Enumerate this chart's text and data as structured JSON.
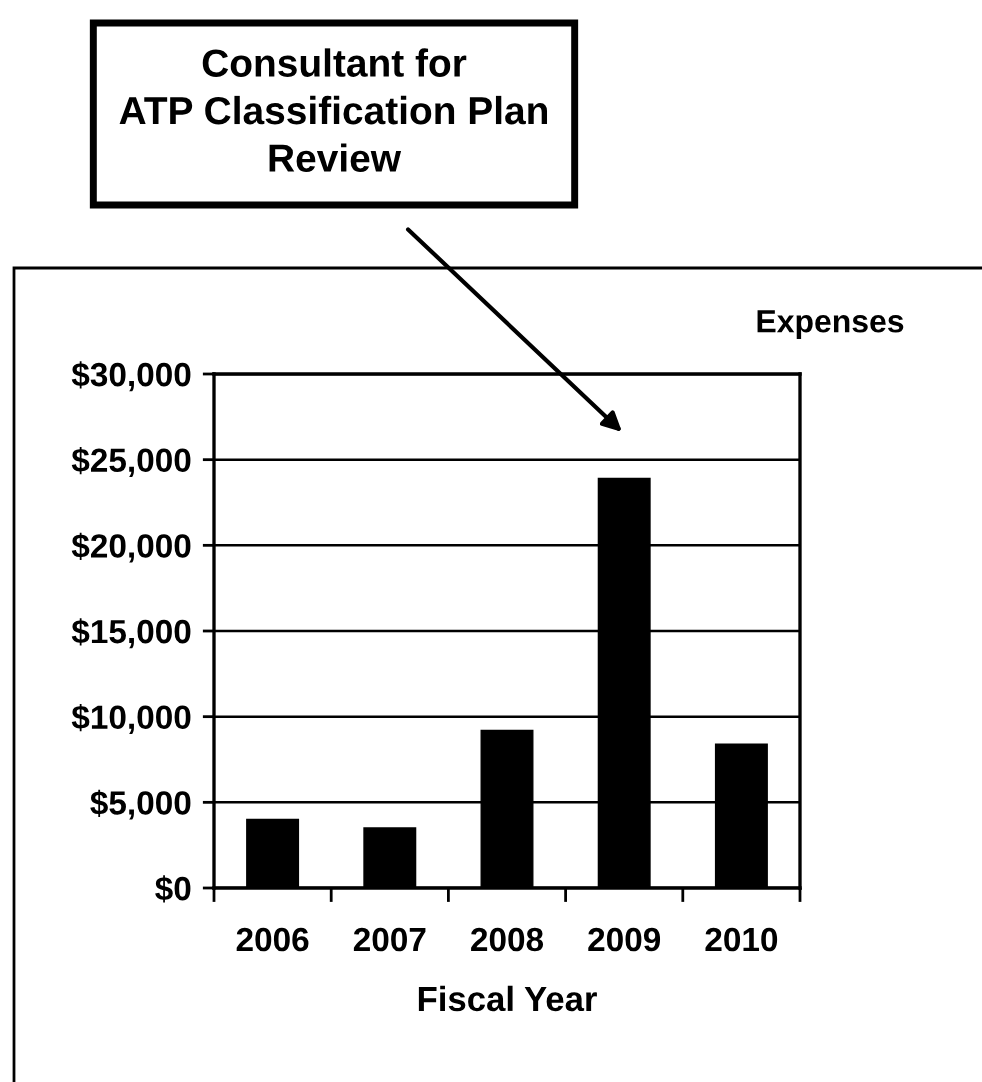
{
  "chart_data": {
    "type": "bar",
    "title": "Expenses",
    "xlabel": "Fiscal Year",
    "categories": [
      "2006",
      "2007",
      "2008",
      "2009",
      "2010"
    ],
    "values": [
      4000,
      3500,
      9200,
      23900,
      8400
    ],
    "color": "#000000",
    "ylim": [
      0,
      30000
    ],
    "yticks": [
      {
        "value": 0,
        "label": "$0"
      },
      {
        "value": 5000,
        "label": "$5,000"
      },
      {
        "value": 10000,
        "label": "$10,000"
      },
      {
        "value": 15000,
        "label": "$15,000"
      },
      {
        "value": 20000,
        "label": "$20,000"
      },
      {
        "value": 25000,
        "label": "$25,000"
      },
      {
        "value": 30000,
        "label": "$30,000"
      }
    ],
    "grid": "y",
    "annotations": [
      "Consultant for\nATP Classification Plan\nReview"
    ]
  }
}
